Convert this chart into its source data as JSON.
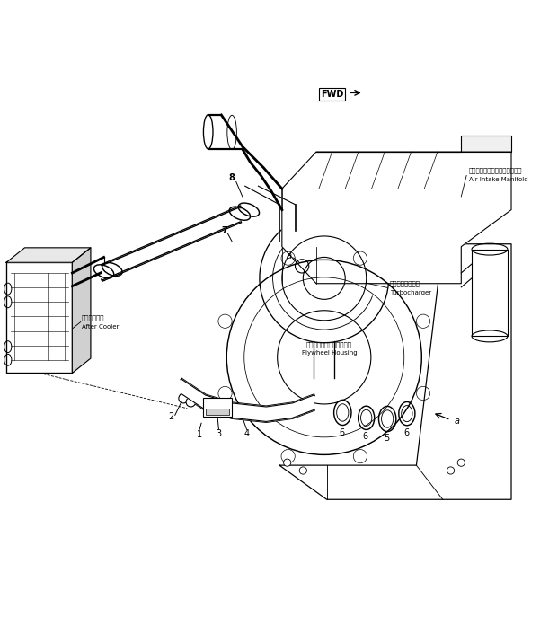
{
  "bg_color": "#ffffff",
  "line_color": "#000000",
  "fig_width": 6.01,
  "fig_height": 6.96,
  "dpi": 100,
  "labels": {
    "fwd": "FWD",
    "air_intake_jp": "エアーインテークマニホールド",
    "air_intake_en": "Air Intake Manifold",
    "turbo_jp": "ターボチャージャ",
    "turbo_en": "Turbocharger",
    "after_cooler_jp": "アフタクーラ",
    "after_cooler_en": "After Cooler",
    "flywheel_jp": "フライホイールハウジング",
    "flywheel_en": "Flywheel Housing"
  }
}
